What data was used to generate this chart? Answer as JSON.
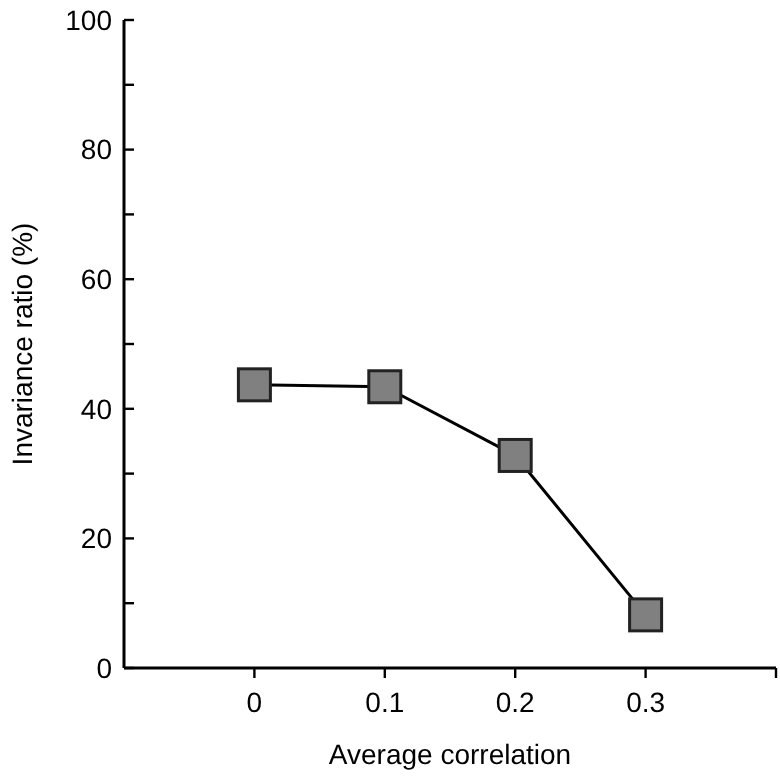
{
  "chart_data": {
    "type": "line",
    "xlabel": "Average correlation",
    "ylabel": "Invariance ratio (%)",
    "x": [
      0,
      0.1,
      0.2,
      0.3
    ],
    "series": [
      {
        "color": "#808080",
        "values": [
          43.7,
          43.4,
          32.8,
          8.2
        ]
      }
    ],
    "xlim": [
      -0.1,
      0.4
    ],
    "xticks": [
      0,
      0.1,
      0.2,
      0.3,
      {
        "value": 0.4,
        "label": null
      }
    ],
    "ylim": [
      0,
      100
    ],
    "yticks": [
      0,
      {
        "value": 10,
        "label": null
      },
      20,
      {
        "value": 30,
        "label": null
      },
      40,
      {
        "value": 50,
        "label": null
      },
      60,
      {
        "value": 70,
        "label": null
      },
      80,
      {
        "value": 90,
        "label": null
      },
      100
    ],
    "marker": "square",
    "line_style": "solid"
  }
}
